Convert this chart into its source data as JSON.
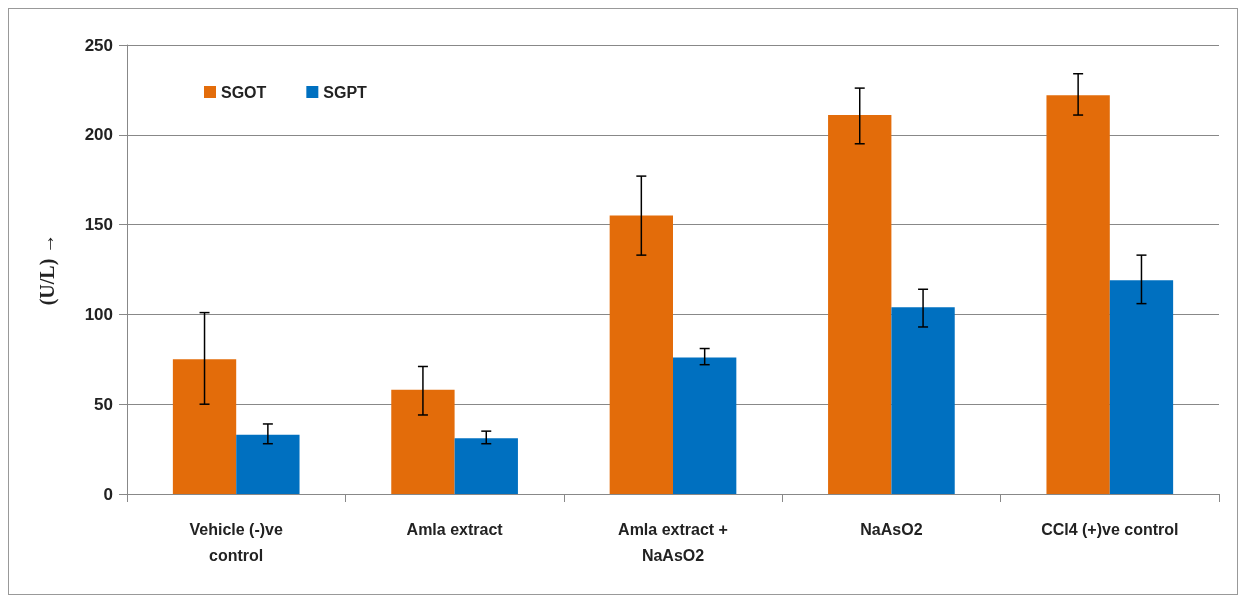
{
  "chart_data": {
    "type": "bar",
    "ylabel": "(U/L) →",
    "categories": [
      "Vehicle (-)ve\ncontrol",
      "Amla extract",
      "Amla extract +\nNaAsO2",
      "NaAsO2",
      "CCl4 (+)ve control"
    ],
    "series": [
      {
        "name": "SGOT",
        "color": "#e36c0a",
        "values": [
          75,
          58,
          155,
          211,
          222
        ],
        "errors": [
          [
            50,
            101
          ],
          [
            44,
            71
          ],
          [
            133,
            177
          ],
          [
            195,
            226
          ],
          [
            211,
            234
          ]
        ]
      },
      {
        "name": "SGPT",
        "color": "#0070c0",
        "values": [
          33,
          31,
          76,
          104,
          119
        ],
        "errors": [
          [
            28,
            39
          ],
          [
            28,
            35
          ],
          [
            72,
            81
          ],
          [
            93,
            114
          ],
          [
            106,
            133
          ]
        ]
      }
    ],
    "ylim": [
      0,
      250
    ],
    "yticks": [
      0,
      50,
      100,
      150,
      200,
      250
    ],
    "grid": "y",
    "legend": "top left"
  }
}
